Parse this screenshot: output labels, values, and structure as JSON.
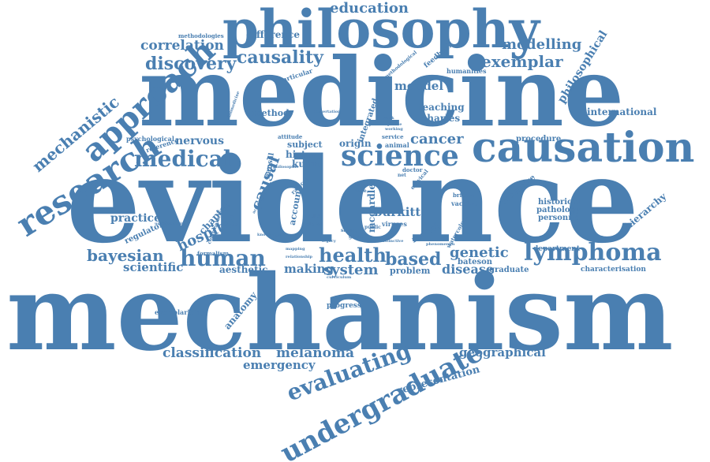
{
  "color": "#4a7fb1",
  "words": [
    "mechanism",
    "evidence",
    "medicine",
    "philosophy",
    "causation",
    "research",
    "approach",
    "science",
    "medical",
    "lymphoma",
    "undergraduate",
    "evaluating",
    "human",
    "health",
    "bayesian",
    "based",
    "discovery",
    "causality",
    "mechanistic",
    "education",
    "correlation",
    "exemplar",
    "modelling",
    "system",
    "genetic",
    "melanoma",
    "classification",
    "cancer",
    "hospital",
    "scientific",
    "disease",
    "emergency",
    "making",
    "geographical",
    "philosophical",
    "representation",
    "causal",
    "mendel",
    "burkitt",
    "anatomy",
    "nervous",
    "practice",
    "international",
    "charles",
    "teaching",
    "method",
    "difference",
    "kuhn",
    "history",
    "subject",
    "origin",
    "problem",
    "hierarchy",
    "chapter",
    "aesthetic",
    "personnel",
    "pathology",
    "historical",
    "procedure",
    "department",
    "recursive",
    "bateson",
    "graduate",
    "characterisation",
    "progress",
    "exemplarising",
    "methodologies",
    "feedback",
    "humanities",
    "particular",
    "psychological",
    "reference",
    "regulatory",
    "integrated",
    "account",
    "mccardle",
    "model",
    "viruses",
    "vaccine",
    "animal",
    "service",
    "doctor",
    "formalism",
    "commentaries",
    "hansal",
    "radical",
    "cervical",
    "watercolour",
    "britain",
    "public",
    "cyclic",
    "global",
    "great",
    "saving",
    "issue",
    "case",
    "net",
    "work",
    "episode",
    "working",
    "attitude",
    "distinctive",
    "phenomenon",
    "legacy",
    "relationship",
    "curriculum",
    "biomedicine",
    "methodological",
    "dissertation",
    "mapping",
    "knowledge",
    "understanding",
    "philosophie",
    "accident"
  ]
}
